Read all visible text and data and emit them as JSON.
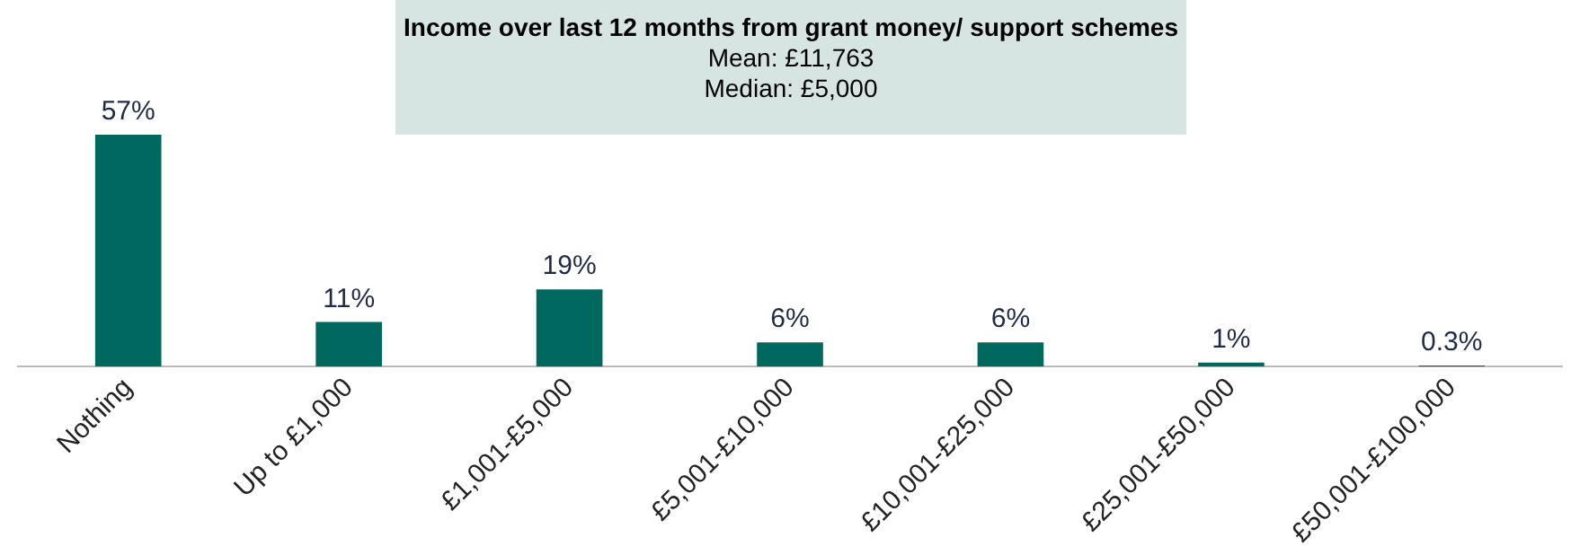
{
  "chart_data": {
    "type": "bar",
    "title": "Income over last 12 months from grant money/ support schemes",
    "annotations": [
      "Mean: £11,763",
      "Median: £5,000"
    ],
    "categories": [
      "Nothing",
      "Up to £1,000",
      "£1,001-£5,000",
      "£5,001-£10,000",
      "£10,001-£25,000",
      "£25,001-£50,000",
      "£50,001-£100,000"
    ],
    "values": [
      57,
      11,
      19,
      6,
      6,
      1,
      0.3
    ],
    "value_labels": [
      "57%",
      "11%",
      "19%",
      "6%",
      "6%",
      "1%",
      "0.3%"
    ],
    "color": "#00695f",
    "tick_labels": "x",
    "grid": false,
    "legend": false
  }
}
